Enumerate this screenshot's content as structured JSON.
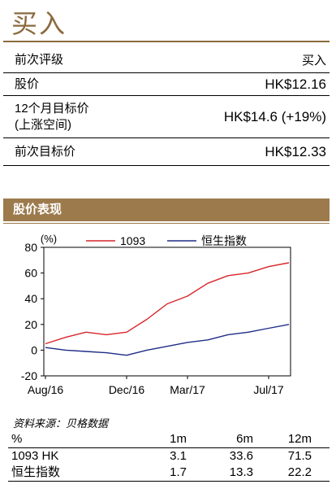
{
  "rating": "买入",
  "info_rows": [
    {
      "label": "前次评级",
      "value": "买入"
    },
    {
      "label": "股价",
      "value": "HK$12.16"
    },
    {
      "label": "12个月目标价",
      "label2": "(上涨空间)",
      "value": "HK$14.6 (+19%)"
    },
    {
      "label": "前次目标价",
      "value": "HK$12.33"
    }
  ],
  "section_title": "股价表现",
  "source": "资料来源：贝格数据",
  "perf_table": {
    "header": [
      "%",
      "1m",
      "6m",
      "12m"
    ],
    "rows": [
      [
        "1093 HK",
        "3.1",
        "33.6",
        "71.5"
      ],
      [
        "恒生指数",
        "1.7",
        "13.3",
        "22.2"
      ]
    ]
  },
  "chart_data": {
    "type": "line",
    "ylabel": "(%)",
    "ylim": [
      -20,
      80
    ],
    "yticks": [
      "80",
      "60",
      "40",
      "20",
      "0",
      "-20"
    ],
    "xticks": [
      "Aug/16",
      "Dec/16",
      "Mar/17",
      "Jul/17"
    ],
    "x": [
      "Aug/16",
      "Sep/16",
      "Oct/16",
      "Nov/16",
      "Dec/16",
      "Jan/17",
      "Feb/17",
      "Mar/17",
      "Apr/17",
      "May/17",
      "Jun/17",
      "Jul/17",
      "Aug/17"
    ],
    "series": [
      {
        "name": "1093",
        "color": "#d7262b",
        "values": [
          5,
          10,
          14,
          12,
          14,
          24,
          36,
          42,
          52,
          58,
          60,
          65,
          68
        ]
      },
      {
        "name": "恒生指数",
        "color": "#1f2d86",
        "values": [
          2,
          0,
          -1,
          -2,
          -4,
          0,
          3,
          6,
          8,
          12,
          14,
          17,
          20
        ]
      }
    ]
  }
}
